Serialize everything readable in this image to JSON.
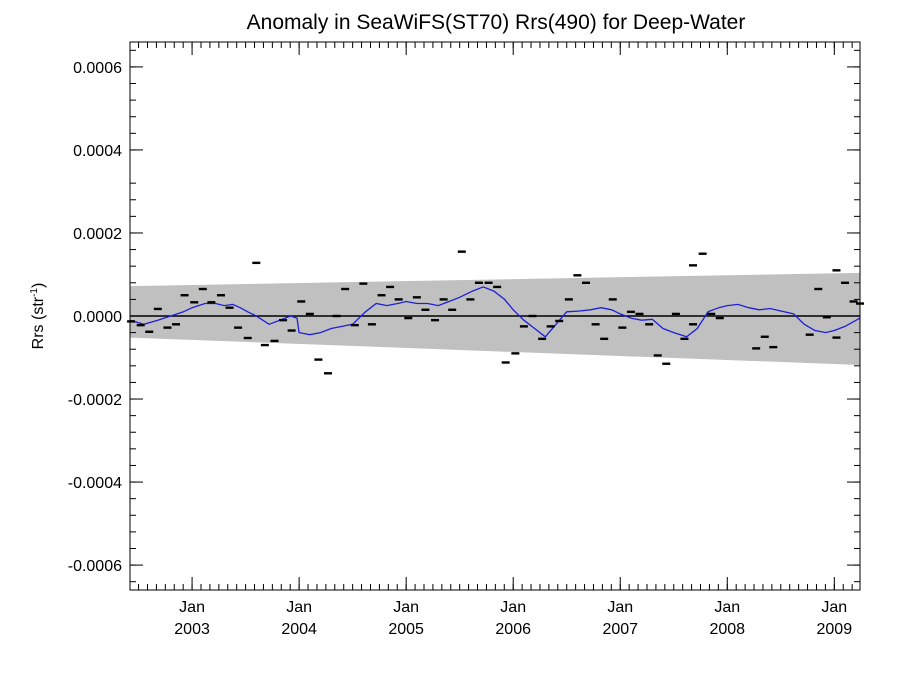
{
  "chart_data": {
    "type": "scatter",
    "title": "Anomaly in SeaWiFS(ST70) Rrs(490) for Deep-Water",
    "ylabel": "Rrs (str",
    "ylabel_sup": "-1",
    "ylabel_close": ")",
    "xlim": [
      2002.42,
      2009.24
    ],
    "ylim": [
      -0.00066,
      0.00066
    ],
    "yticks": [
      {
        "value": 0.0006,
        "label": "0.0006"
      },
      {
        "value": 0.0004,
        "label": "0.0004"
      },
      {
        "value": 0.0002,
        "label": "0.0002"
      },
      {
        "value": 0.0,
        "label": "0.0000"
      },
      {
        "value": -0.0002,
        "label": "-0.0002"
      },
      {
        "value": -0.0004,
        "label": "-0.0004"
      },
      {
        "value": -0.0006,
        "label": "-0.0006"
      }
    ],
    "xticks": [
      {
        "value": 2003.0,
        "month": "Jan",
        "year": "2003"
      },
      {
        "value": 2004.0,
        "month": "Jan",
        "year": "2004"
      },
      {
        "value": 2005.0,
        "month": "Jan",
        "year": "2005"
      },
      {
        "value": 2006.0,
        "month": "Jan",
        "year": "2006"
      },
      {
        "value": 2007.0,
        "month": "Jan",
        "year": "2007"
      },
      {
        "value": 2008.0,
        "month": "Jan",
        "year": "2008"
      },
      {
        "value": 2009.0,
        "month": "Jan",
        "year": "2009"
      }
    ],
    "band": {
      "x": [
        2002.42,
        2009.24
      ],
      "upper": [
        7.2e-05,
        0.000104
      ],
      "lower": [
        -5.2e-05,
        -0.000118
      ],
      "color": "#c0c0c0"
    },
    "zero_line": 0.0,
    "points": {
      "color": "#000000",
      "x": [
        2002.43,
        2002.52,
        2002.6,
        2002.68,
        2002.77,
        2002.85,
        2002.93,
        2003.02,
        2003.1,
        2003.18,
        2003.27,
        2003.35,
        2003.43,
        2003.52,
        2003.6,
        2003.68,
        2003.77,
        2003.85,
        2003.93,
        2004.02,
        2004.1,
        2004.18,
        2004.27,
        2004.35,
        2004.43,
        2004.52,
        2004.6,
        2004.68,
        2004.77,
        2004.85,
        2004.93,
        2005.02,
        2005.1,
        2005.18,
        2005.27,
        2005.35,
        2005.43,
        2005.52,
        2005.6,
        2005.68,
        2005.77,
        2005.85,
        2005.93,
        2006.02,
        2006.1,
        2006.18,
        2006.27,
        2006.35,
        2006.43,
        2006.52,
        2006.6,
        2006.68,
        2006.77,
        2006.85,
        2006.93,
        2007.02,
        2007.1,
        2007.18,
        2007.27,
        2007.35,
        2007.43,
        2007.52,
        2007.6,
        2007.68,
        2007.68,
        2007.77,
        2007.85,
        2007.93,
        2008.27,
        2008.35,
        2008.43,
        2008.77,
        2008.85,
        2008.93,
        2009.02,
        2009.02,
        2009.1,
        2009.18,
        2009.24
      ],
      "y": [
        -1.3e-05,
        -2.2e-05,
        -3.8e-05,
        1.7e-05,
        -2.8e-05,
        -2e-05,
        5e-05,
        3.3e-05,
        6.5e-05,
        3.3e-05,
        5e-05,
        2e-05,
        -2.8e-05,
        -5.3e-05,
        0.000128,
        -7e-05,
        -6e-05,
        -1e-05,
        -3.5e-05,
        3.5e-05,
        5e-06,
        -0.000105,
        -0.000138,
        0.0,
        6.5e-05,
        -2.2e-05,
        7.8e-05,
        -2e-05,
        5e-05,
        7e-05,
        4e-05,
        -5e-06,
        4.5e-05,
        1.5e-05,
        -1e-05,
        4e-05,
        1.5e-05,
        0.000155,
        4e-05,
        8e-05,
        8e-05,
        7e-05,
        -0.000112,
        -9e-05,
        -2.5e-05,
        0.0,
        -5.5e-05,
        -2.5e-05,
        -1.2e-05,
        4e-05,
        9.8e-05,
        8e-05,
        -2e-05,
        -5.5e-05,
        4e-05,
        -2.8e-05,
        1e-05,
        5e-06,
        -2e-05,
        -9.5e-05,
        -0.000115,
        5e-06,
        -5.5e-05,
        -2e-05,
        0.000122,
        0.00015,
        5e-06,
        -5e-06,
        -7.8e-05,
        -5e-05,
        -7.5e-05,
        -4.5e-05,
        6.5e-05,
        -3e-06,
        -5.2e-05,
        0.00011,
        8e-05,
        3.5e-05,
        3e-05
      ]
    },
    "smoothed": {
      "color": "#1f1fd8",
      "x": [
        2002.42,
        2002.55,
        2002.68,
        2002.8,
        2002.92,
        2003.0,
        2003.12,
        2003.22,
        2003.3,
        2003.38,
        2003.45,
        2003.52,
        2003.6,
        2003.72,
        2003.82,
        2003.92,
        2003.98,
        2004.0,
        2004.1,
        2004.2,
        2004.3,
        2004.4,
        2004.5,
        2004.62,
        2004.72,
        2004.82,
        2004.92,
        2005.0,
        2005.1,
        2005.2,
        2005.3,
        2005.4,
        2005.5,
        2005.62,
        2005.72,
        2005.82,
        2005.92,
        2006.0,
        2006.1,
        2006.2,
        2006.3,
        2006.4,
        2006.5,
        2006.62,
        2006.72,
        2006.82,
        2006.92,
        2007.0,
        2007.1,
        2007.2,
        2007.3,
        2007.4,
        2007.5,
        2007.62,
        2007.72,
        2007.82,
        2007.92,
        2008.0,
        2008.1,
        2008.2,
        2008.3,
        2008.4,
        2008.5,
        2008.62,
        2008.72,
        2008.82,
        2008.92,
        2009.0,
        2009.1,
        2009.24
      ],
      "y": [
        -1e-05,
        -2e-05,
        -1e-05,
        0.0,
        1e-05,
        2e-05,
        3e-05,
        3e-05,
        2.5e-05,
        2.8e-05,
        2e-05,
        1e-05,
        0.0,
        -2e-05,
        -1e-05,
        0.0,
        -5e-06,
        -4e-05,
        -4.5e-05,
        -4e-05,
        -3e-05,
        -2.5e-05,
        -2e-05,
        1e-05,
        3e-05,
        2.5e-05,
        3e-05,
        3.5e-05,
        3e-05,
        3e-05,
        2.5e-05,
        3.5e-05,
        4.5e-05,
        6e-05,
        7e-05,
        6e-05,
        4e-05,
        1.5e-05,
        -1e-05,
        -3e-05,
        -5e-05,
        -2e-05,
        1e-05,
        1.2e-05,
        1.5e-05,
        2e-05,
        1.5e-05,
        5e-06,
        -5e-06,
        -1e-05,
        -8e-06,
        -3e-05,
        -4e-05,
        -5e-05,
        -3e-05,
        1e-05,
        2e-05,
        2.5e-05,
        2.8e-05,
        2e-05,
        1.5e-05,
        1.8e-05,
        1.2e-05,
        5e-06,
        -2e-05,
        -3.5e-05,
        -4e-05,
        -3.5e-05,
        -2.5e-05,
        -5e-06
      ]
    },
    "colors": {
      "axis": "#000000",
      "band": "#c0c0c0",
      "line": "#1f1fd8",
      "zero": "#000000"
    }
  }
}
